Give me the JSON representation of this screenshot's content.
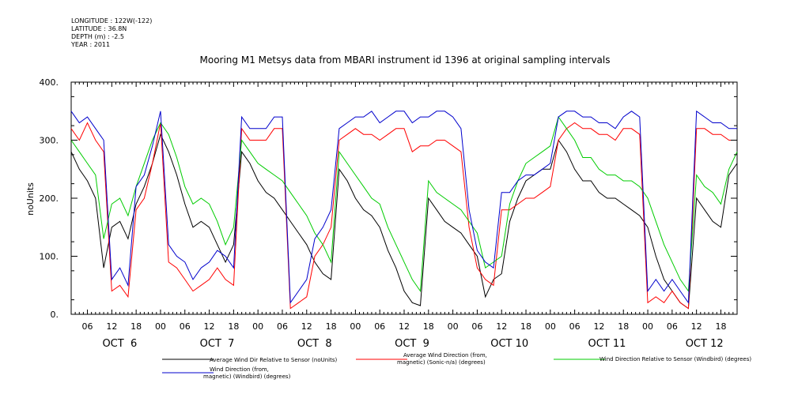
{
  "header_info": [
    "LONGITUDE : 122W(-122)",
    "LATITUDE : 36.8N",
    "DEPTH (m) : -2.5",
    "YEAR : 2011"
  ],
  "chart_data": {
    "type": "line",
    "title": "Mooring M1 Metsys data from MBARI instrument id 1396 at original sampling intervals",
    "ylabel": "noUnits",
    "xlabel": "",
    "ylim": [
      0,
      400
    ],
    "y_ticks": [
      "0.",
      "100.",
      "200.",
      "300.",
      "400."
    ],
    "x_range_hours": [
      2,
      166
    ],
    "x_hour_ticks": [
      "06",
      "12",
      "18",
      "00",
      "06",
      "12",
      "18",
      "00",
      "06",
      "12",
      "18",
      "00",
      "06",
      "12",
      "18",
      "00",
      "06",
      "12",
      "18",
      "00",
      "06",
      "12",
      "18",
      "00",
      "06",
      "12",
      "18"
    ],
    "x_day_labels": [
      "OCT  6",
      "OCT  7",
      "OCT  8",
      "OCT  9",
      "OCT 10",
      "OCT 11",
      "OCT 12"
    ],
    "legend_placement": "bottom",
    "series": [
      {
        "name": "Average Wind Dir Relative to Sensor (noUnits)",
        "color": "#000000",
        "x": [
          2,
          4,
          6,
          8,
          10,
          12,
          14,
          16,
          18,
          20,
          22,
          24,
          26,
          28,
          30,
          32,
          34,
          36,
          38,
          40,
          42,
          44,
          46,
          48,
          50,
          52,
          54,
          56,
          58,
          60,
          62,
          64,
          66,
          68,
          70,
          72,
          74,
          76,
          78,
          80,
          82,
          84,
          86,
          88,
          90,
          92,
          94,
          96,
          98,
          100,
          102,
          104,
          106,
          108,
          110,
          112,
          114,
          116,
          118,
          120,
          122,
          124,
          126,
          128,
          130,
          132,
          134,
          136,
          138,
          140,
          142,
          144,
          146,
          148,
          150,
          152,
          154,
          156,
          158,
          160,
          162,
          164,
          166
        ],
        "values": [
          280,
          250,
          230,
          200,
          80,
          150,
          160,
          130,
          190,
          220,
          260,
          310,
          280,
          240,
          190,
          150,
          160,
          150,
          120,
          90,
          120,
          280,
          260,
          230,
          210,
          200,
          180,
          160,
          140,
          120,
          90,
          70,
          60,
          250,
          230,
          200,
          180,
          170,
          150,
          110,
          80,
          40,
          20,
          15,
          200,
          180,
          160,
          150,
          140,
          120,
          100,
          30,
          60,
          70,
          160,
          200,
          230,
          240,
          250,
          250,
          300,
          280,
          250,
          230,
          230,
          210,
          200,
          200,
          190,
          180,
          170,
          150,
          100,
          60,
          40,
          20,
          10,
          200,
          180,
          160,
          150,
          240,
          260
        ]
      },
      {
        "name": "Average Wind Direction (from, magnetic) (Sonic-n/a) (degrees)",
        "color": "#ff0000",
        "x": [
          2,
          4,
          6,
          8,
          10,
          12,
          14,
          16,
          18,
          20,
          22,
          24,
          26,
          28,
          30,
          32,
          34,
          36,
          38,
          40,
          42,
          44,
          46,
          48,
          50,
          52,
          54,
          56,
          58,
          60,
          62,
          64,
          66,
          68,
          70,
          72,
          74,
          76,
          78,
          80,
          82,
          84,
          86,
          88,
          90,
          92,
          94,
          96,
          98,
          100,
          102,
          104,
          106,
          108,
          110,
          112,
          114,
          116,
          118,
          120,
          122,
          124,
          126,
          128,
          130,
          132,
          134,
          136,
          138,
          140,
          142,
          144,
          146,
          148,
          150,
          152,
          154,
          156,
          158,
          160,
          162,
          164,
          166
        ],
        "values": [
          320,
          300,
          330,
          300,
          280,
          40,
          50,
          30,
          180,
          200,
          260,
          330,
          90,
          80,
          60,
          40,
          50,
          60,
          80,
          60,
          50,
          320,
          300,
          300,
          300,
          320,
          320,
          10,
          20,
          30,
          100,
          120,
          150,
          300,
          310,
          320,
          310,
          310,
          300,
          310,
          320,
          320,
          280,
          290,
          290,
          300,
          300,
          290,
          280,
          150,
          80,
          60,
          50,
          180,
          180,
          190,
          200,
          200,
          210,
          220,
          300,
          320,
          330,
          320,
          320,
          310,
          310,
          300,
          320,
          320,
          310,
          20,
          30,
          20,
          40,
          20,
          10,
          320,
          320,
          310,
          310,
          300,
          300
        ]
      },
      {
        "name": "Wind Direction Relative to Sensor (Windbird) (degrees)",
        "color": "#00cc00",
        "x": [
          2,
          4,
          6,
          8,
          10,
          12,
          14,
          16,
          18,
          20,
          22,
          24,
          26,
          28,
          30,
          32,
          34,
          36,
          38,
          40,
          42,
          44,
          46,
          48,
          50,
          52,
          54,
          56,
          58,
          60,
          62,
          64,
          66,
          68,
          70,
          72,
          74,
          76,
          78,
          80,
          82,
          84,
          86,
          88,
          90,
          92,
          94,
          96,
          98,
          100,
          102,
          104,
          106,
          108,
          110,
          112,
          114,
          116,
          118,
          120,
          122,
          124,
          126,
          128,
          130,
          132,
          134,
          136,
          138,
          140,
          142,
          144,
          146,
          148,
          150,
          152,
          154,
          156,
          158,
          160,
          162,
          164,
          166
        ],
        "values": [
          300,
          280,
          260,
          240,
          130,
          190,
          200,
          170,
          220,
          260,
          300,
          330,
          310,
          270,
          220,
          190,
          200,
          190,
          160,
          120,
          150,
          300,
          280,
          260,
          250,
          240,
          230,
          210,
          190,
          170,
          140,
          120,
          90,
          280,
          260,
          240,
          220,
          200,
          190,
          150,
          120,
          90,
          60,
          40,
          230,
          210,
          200,
          190,
          180,
          160,
          140,
          80,
          90,
          100,
          190,
          230,
          260,
          270,
          280,
          290,
          340,
          320,
          300,
          270,
          270,
          250,
          240,
          240,
          230,
          230,
          220,
          200,
          160,
          120,
          90,
          60,
          40,
          240,
          220,
          210,
          190,
          250,
          280
        ]
      },
      {
        "name": "Wind Direction (from, magnetic) (Windbird) (degrees)",
        "color": "#0000cc",
        "x": [
          2,
          4,
          6,
          8,
          10,
          12,
          14,
          16,
          18,
          20,
          22,
          24,
          26,
          28,
          30,
          32,
          34,
          36,
          38,
          40,
          42,
          44,
          46,
          48,
          50,
          52,
          54,
          56,
          58,
          60,
          62,
          64,
          66,
          68,
          70,
          72,
          74,
          76,
          78,
          80,
          82,
          84,
          86,
          88,
          90,
          92,
          94,
          96,
          98,
          100,
          102,
          104,
          106,
          108,
          110,
          112,
          114,
          116,
          118,
          120,
          122,
          124,
          126,
          128,
          130,
          132,
          134,
          136,
          138,
          140,
          142,
          144,
          146,
          148,
          150,
          152,
          154,
          156,
          158,
          160,
          162,
          164,
          166
        ],
        "values": [
          350,
          330,
          340,
          320,
          300,
          60,
          80,
          50,
          220,
          240,
          290,
          350,
          120,
          100,
          90,
          60,
          80,
          90,
          110,
          100,
          80,
          340,
          320,
          320,
          320,
          340,
          340,
          20,
          40,
          60,
          130,
          150,
          180,
          320,
          330,
          340,
          340,
          350,
          330,
          340,
          350,
          350,
          330,
          340,
          340,
          350,
          350,
          340,
          320,
          180,
          110,
          90,
          80,
          210,
          210,
          230,
          240,
          240,
          250,
          260,
          340,
          350,
          350,
          340,
          340,
          330,
          330,
          320,
          340,
          350,
          340,
          40,
          60,
          40,
          60,
          40,
          20,
          350,
          340,
          330,
          330,
          320,
          320
        ]
      }
    ]
  }
}
